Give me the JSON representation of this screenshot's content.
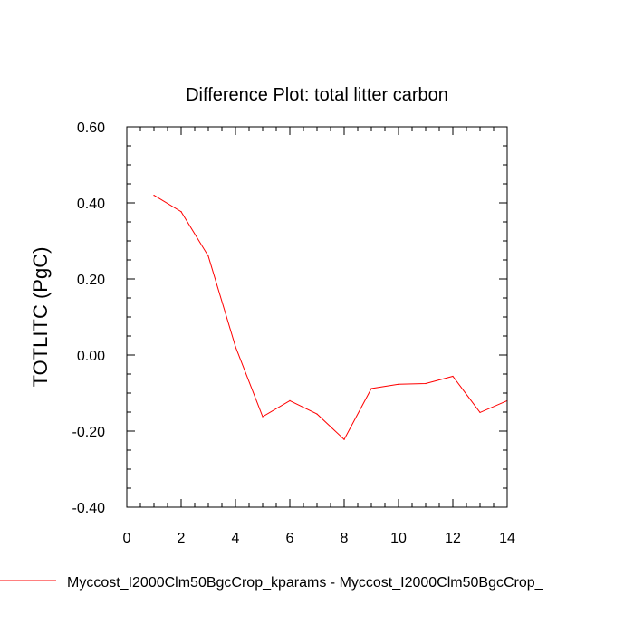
{
  "chart_data": {
    "type": "line",
    "title": "Difference Plot: total litter carbon",
    "xlabel": "",
    "ylabel": "TOTLITC  (PgC)",
    "xlim": [
      0,
      14
    ],
    "ylim": [
      -0.4,
      0.6
    ],
    "x_ticks": [
      0,
      2,
      4,
      6,
      8,
      10,
      12,
      14
    ],
    "x_tick_labels": [
      "0",
      "2",
      "4",
      "6",
      "8",
      "10",
      "12",
      "14"
    ],
    "y_ticks": [
      -0.4,
      -0.2,
      0.0,
      0.2,
      0.4,
      0.6
    ],
    "y_tick_labels": [
      "-0.40",
      "-0.20",
      "0.00",
      "0.20",
      "0.40",
      "0.60"
    ],
    "grid": false,
    "legend_position": "bottom",
    "series": [
      {
        "name": "Myccost_I2000Clm50BgcCrop_kparams - Myccost_I2000Clm50BgcCrop_",
        "color": "#ff0000",
        "x": [
          1,
          2,
          3,
          4,
          5,
          6,
          7,
          8,
          9,
          10,
          11,
          12,
          13,
          14
        ],
        "values": [
          0.42,
          0.377,
          0.26,
          0.022,
          -0.162,
          -0.12,
          -0.155,
          -0.222,
          -0.088,
          -0.077,
          -0.075,
          -0.056,
          -0.151,
          -0.12
        ]
      }
    ]
  }
}
